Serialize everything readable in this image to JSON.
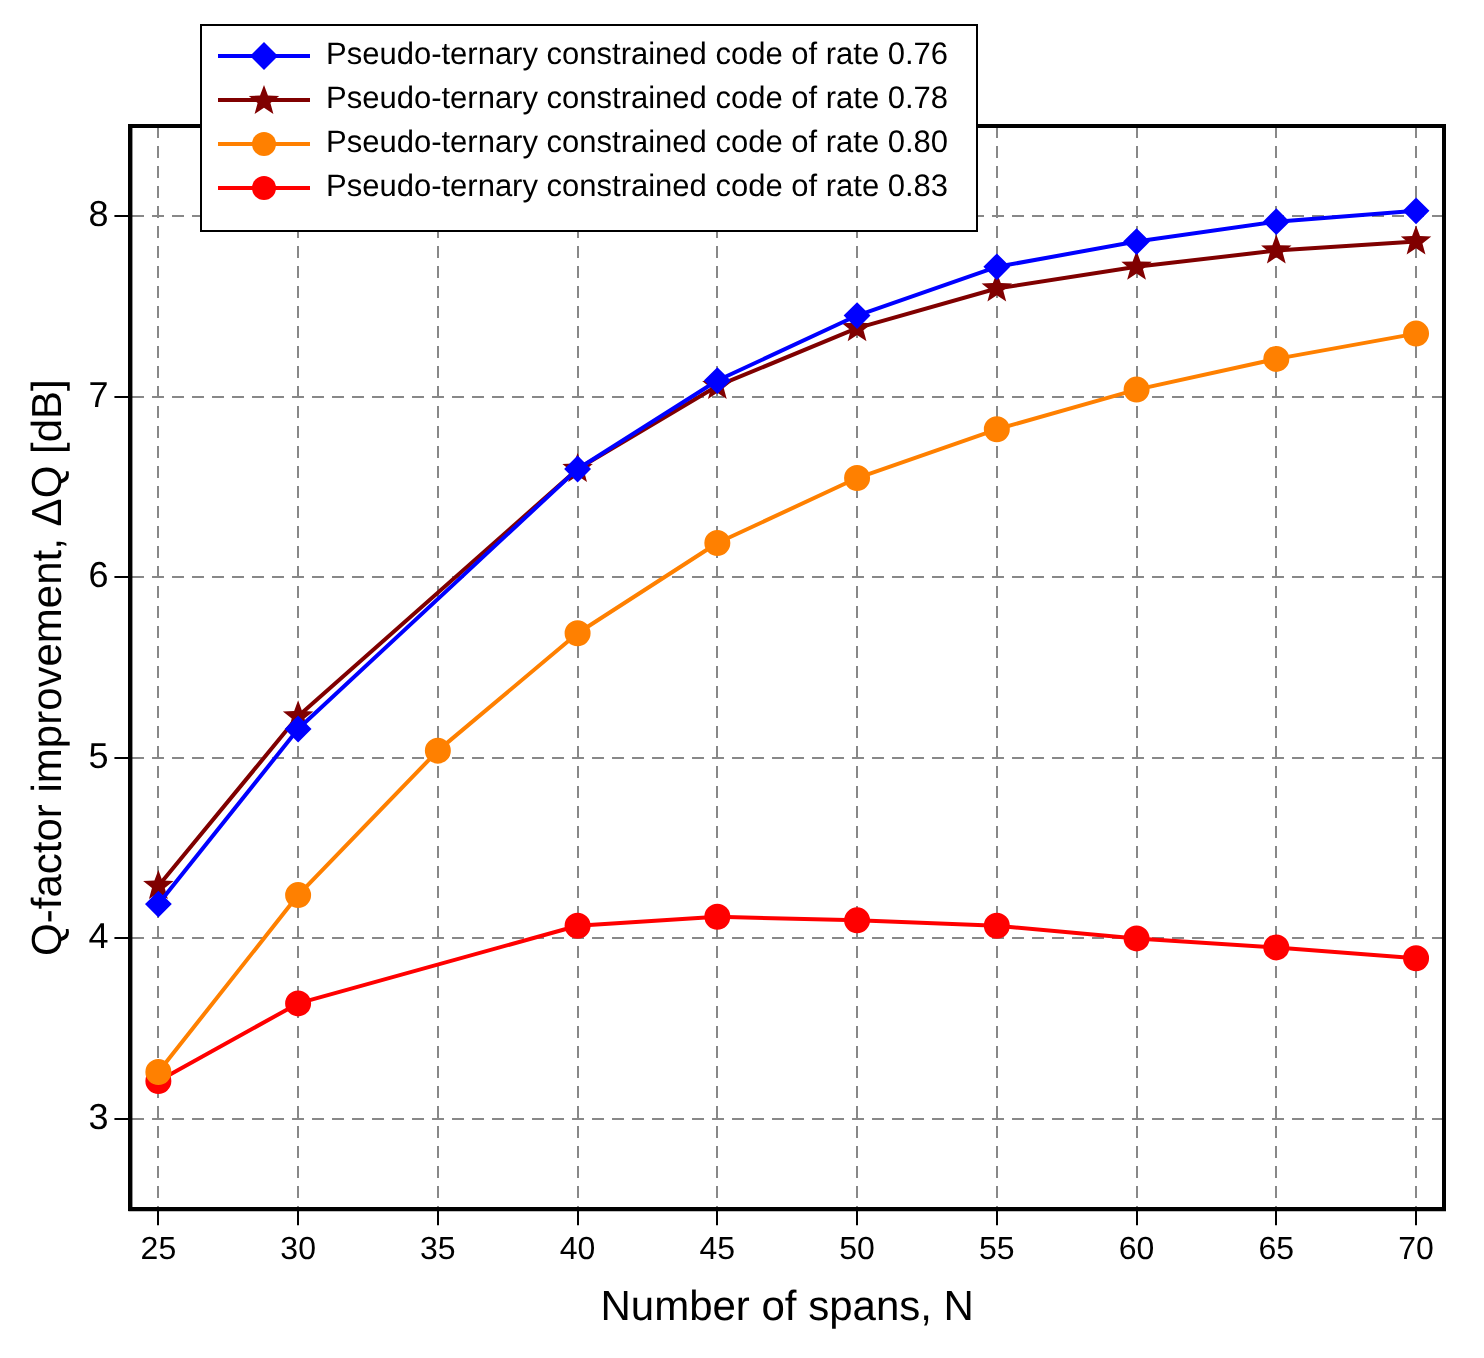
{
  "chart_data": {
    "type": "line",
    "xlabel": "Number of spans, N",
    "ylabel": "Q-factor improvement, ΔQ [dB]",
    "xlim": [
      24,
      71
    ],
    "xticks": [
      25,
      30,
      35,
      40,
      45,
      50,
      55,
      60,
      65,
      70
    ],
    "ylim": [
      2.5,
      8.5
    ],
    "yticks": [
      3,
      4,
      5,
      6,
      7,
      8
    ],
    "grid": true,
    "legend": "top left",
    "line_style": "solid",
    "series": [
      {
        "name": "Pseudo-ternary constrained code of rate 0.76",
        "color": "#0000ff",
        "marker": "diamond",
        "x": [
          25,
          30,
          40,
          45,
          50,
          55,
          60,
          65,
          70
        ],
        "values": [
          4.19,
          5.16,
          6.6,
          7.09,
          7.45,
          7.72,
          7.86,
          7.97,
          8.03
        ]
      },
      {
        "name": "Pseudo-ternary constrained code of rate 0.78",
        "color": "#800000",
        "marker": "star",
        "x": [
          25,
          30,
          40,
          45,
          50,
          55,
          60,
          65,
          70
        ],
        "values": [
          4.29,
          5.23,
          6.6,
          7.06,
          7.38,
          7.6,
          7.72,
          7.81,
          7.86
        ]
      },
      {
        "name": "Pseudo-ternary constrained code of rate 0.80",
        "color": "#ff8000",
        "marker": "circle",
        "x": [
          25,
          30,
          35,
          40,
          45,
          50,
          55,
          60,
          65,
          70
        ],
        "values": [
          3.26,
          4.24,
          5.04,
          5.69,
          6.19,
          6.55,
          6.82,
          7.04,
          7.21,
          7.35
        ]
      },
      {
        "name": "Pseudo-ternary constrained code of rate 0.83",
        "color": "#ff0000",
        "marker": "circle",
        "x": [
          25,
          30,
          40,
          45,
          50,
          55,
          60,
          65,
          70
        ],
        "values": [
          3.21,
          3.64,
          4.07,
          4.12,
          4.1,
          4.07,
          4,
          3.95,
          3.89
        ]
      }
    ]
  }
}
